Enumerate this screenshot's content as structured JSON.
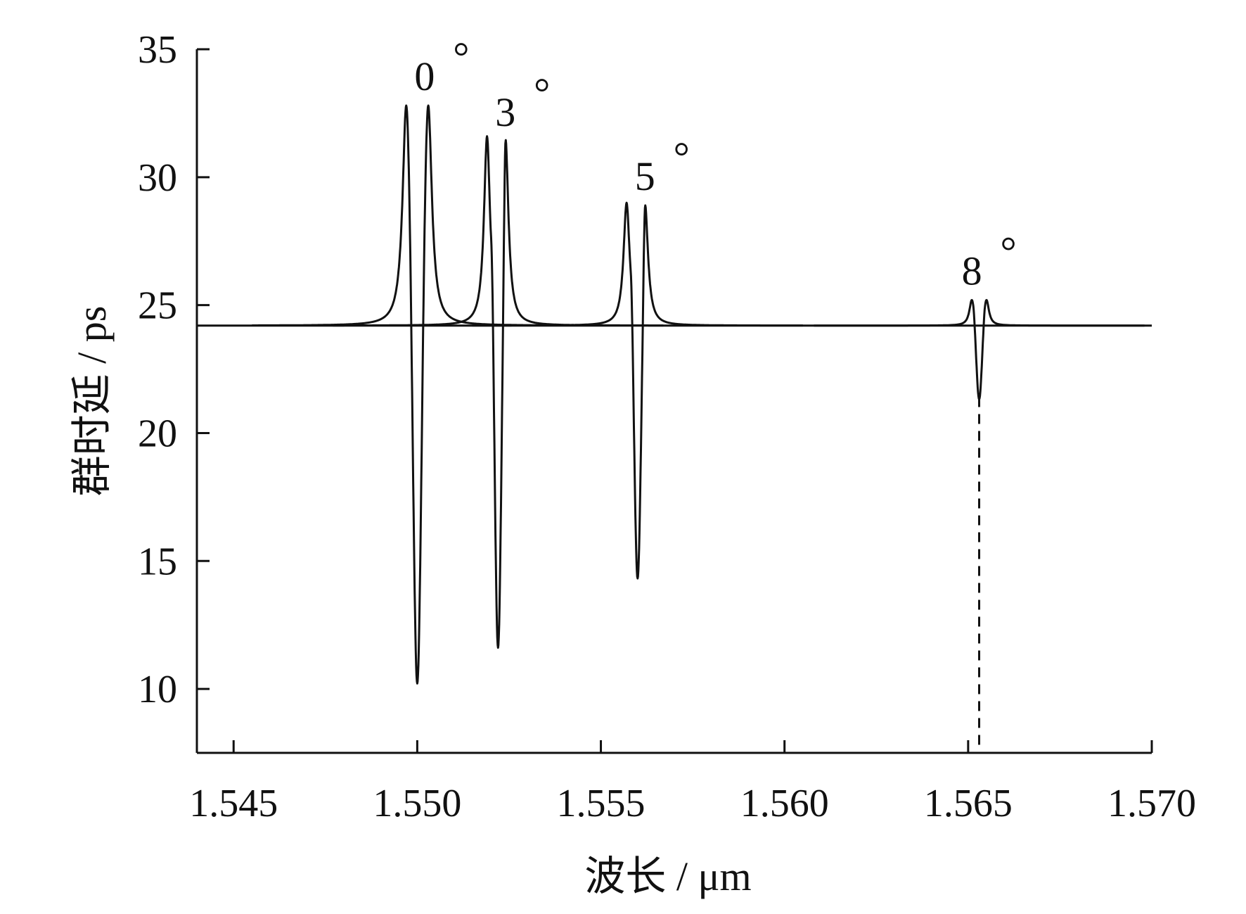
{
  "chart_data": {
    "type": "line",
    "title": "",
    "xlabel": "波长 / μm",
    "ylabel": "群时延 / ps",
    "xlim": [
      1.544,
      1.57
    ],
    "ylim": [
      7.5,
      35
    ],
    "xticks": [
      1.545,
      1.55,
      1.555,
      1.56,
      1.565,
      1.57
    ],
    "xtick_labels": [
      "1.545",
      "1.550",
      "1.555",
      "1.560",
      "1.565",
      "1.570"
    ],
    "yticks": [
      10,
      15,
      20,
      25,
      30,
      35
    ],
    "ytick_labels": [
      "10",
      "15",
      "20",
      "25",
      "30",
      "35"
    ],
    "grid": false,
    "baseline": 24.2,
    "color": "#111111",
    "series": [
      {
        "angle_label": "0",
        "center": 1.55,
        "peak_left": 1.5497,
        "peak_right": 1.5503,
        "peak_value": 32.8,
        "dip_value": 10.9
      },
      {
        "angle_label": "3",
        "center": 1.5522,
        "peak_left": 1.5519,
        "peak_right": 1.5524,
        "peak_value": 31.6,
        "dip_value": 12.2
      },
      {
        "angle_label": "5",
        "center": 1.556,
        "peak_left": 1.5557,
        "peak_right": 1.5562,
        "peak_value": 29.0,
        "dip_value": 14.7
      },
      {
        "angle_label": "8",
        "center": 1.5653,
        "peak_left": 1.5651,
        "peak_right": 1.5655,
        "peak_value": 25.2,
        "dip_value": 21.4
      }
    ],
    "annotations": [
      {
        "text": "0",
        "superscript": "°",
        "x": 1.5502,
        "y": 33.4
      },
      {
        "text": "3",
        "superscript": "°",
        "x": 1.5524,
        "y": 32.0
      },
      {
        "text": "5",
        "superscript": "°",
        "x": 1.5562,
        "y": 29.5
      },
      {
        "text": "8",
        "superscript": "°",
        "x": 1.5651,
        "y": 25.8
      }
    ],
    "dashed_marker": {
      "x": 1.5653,
      "from": 21.4,
      "to": 7.5
    }
  }
}
